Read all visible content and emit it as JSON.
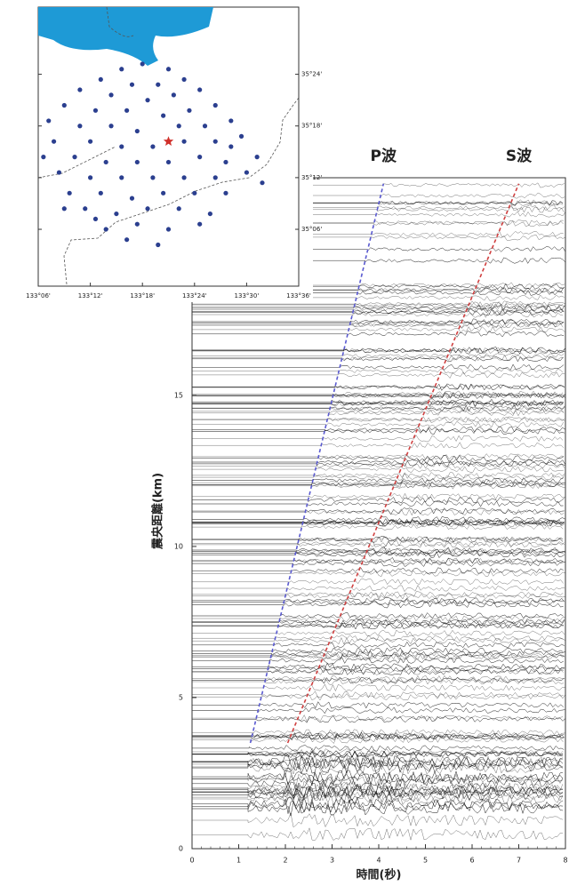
{
  "chart_data": [
    {
      "type": "scatter",
      "xlim": [
        133.1,
        133.6
      ],
      "ylim": [
        34.99,
        35.53
      ],
      "xticks": [
        {
          "value": 133.1,
          "label": "133°06'"
        },
        {
          "value": 133.2,
          "label": "133°12'"
        },
        {
          "value": 133.3,
          "label": "133°18'"
        },
        {
          "value": 133.4,
          "label": "133°24'"
        },
        {
          "value": 133.5,
          "label": "133°30'"
        },
        {
          "value": 133.6,
          "label": "133°36'"
        }
      ],
      "yticks": [
        {
          "value": 35.1,
          "label": "35°06'"
        },
        {
          "value": 35.2,
          "label": "35°12'"
        },
        {
          "value": 35.3,
          "label": "35°18'"
        },
        {
          "value": 35.4,
          "label": "35°24'"
        }
      ],
      "series": [
        {
          "color": "#2b3f8f",
          "marker": "circle",
          "x": [
            133.26,
            133.3,
            133.35,
            133.22,
            133.28,
            133.33,
            133.38,
            133.18,
            133.24,
            133.31,
            133.36,
            133.41,
            133.15,
            133.21,
            133.27,
            133.34,
            133.39,
            133.44,
            133.12,
            133.18,
            133.24,
            133.29,
            133.37,
            133.42,
            133.47,
            133.13,
            133.2,
            133.26,
            133.32,
            133.38,
            133.44,
            133.49,
            133.11,
            133.17,
            133.23,
            133.29,
            133.35,
            133.41,
            133.46,
            133.52,
            133.14,
            133.2,
            133.26,
            133.32,
            133.38,
            133.44,
            133.5,
            133.16,
            133.22,
            133.28,
            133.34,
            133.4,
            133.46,
            133.19,
            133.25,
            133.31,
            133.37,
            133.43,
            133.23,
            133.29,
            133.35,
            133.41,
            133.27,
            133.33,
            133.21,
            133.15,
            133.47,
            133.53
          ],
          "values": [
            35.41,
            35.42,
            35.41,
            35.39,
            35.38,
            35.38,
            35.39,
            35.37,
            35.36,
            35.35,
            35.36,
            35.37,
            35.34,
            35.33,
            35.33,
            35.32,
            35.33,
            35.34,
            35.31,
            35.3,
            35.3,
            35.29,
            35.3,
            35.3,
            35.31,
            35.27,
            35.27,
            35.26,
            35.26,
            35.27,
            35.27,
            35.28,
            35.24,
            35.24,
            35.23,
            35.23,
            35.23,
            35.24,
            35.23,
            35.24,
            35.21,
            35.2,
            35.2,
            35.2,
            35.2,
            35.2,
            35.21,
            35.17,
            35.17,
            35.16,
            35.17,
            35.17,
            35.17,
            35.14,
            35.13,
            35.14,
            35.14,
            35.13,
            35.1,
            35.11,
            35.1,
            35.11,
            35.08,
            35.07,
            35.12,
            35.14,
            35.26,
            35.19
          ]
        },
        {
          "color": "#d0302a",
          "marker": "star",
          "x": [
            133.35
          ],
          "values": [
            35.27
          ]
        }
      ]
    },
    {
      "type": "line",
      "xlabel": "時間(秒)",
      "ylabel": "震央距離(km)",
      "xlim": [
        0,
        8
      ],
      "ylim": [
        0,
        22.2
      ],
      "xticks": [
        0,
        1,
        2,
        3,
        4,
        5,
        6,
        7,
        8
      ],
      "yticks": [
        0,
        5,
        10,
        15
      ],
      "series": [
        {
          "name": "P波",
          "color": "#5a5ad0",
          "dash": true,
          "x": [
            1.25,
            4.1
          ],
          "values": [
            3.5,
            22
          ]
        },
        {
          "name": "S波",
          "color": "#d04040",
          "dash": true,
          "x": [
            2.05,
            7.0
          ],
          "values": [
            3.5,
            22
          ]
        }
      ]
    }
  ]
}
